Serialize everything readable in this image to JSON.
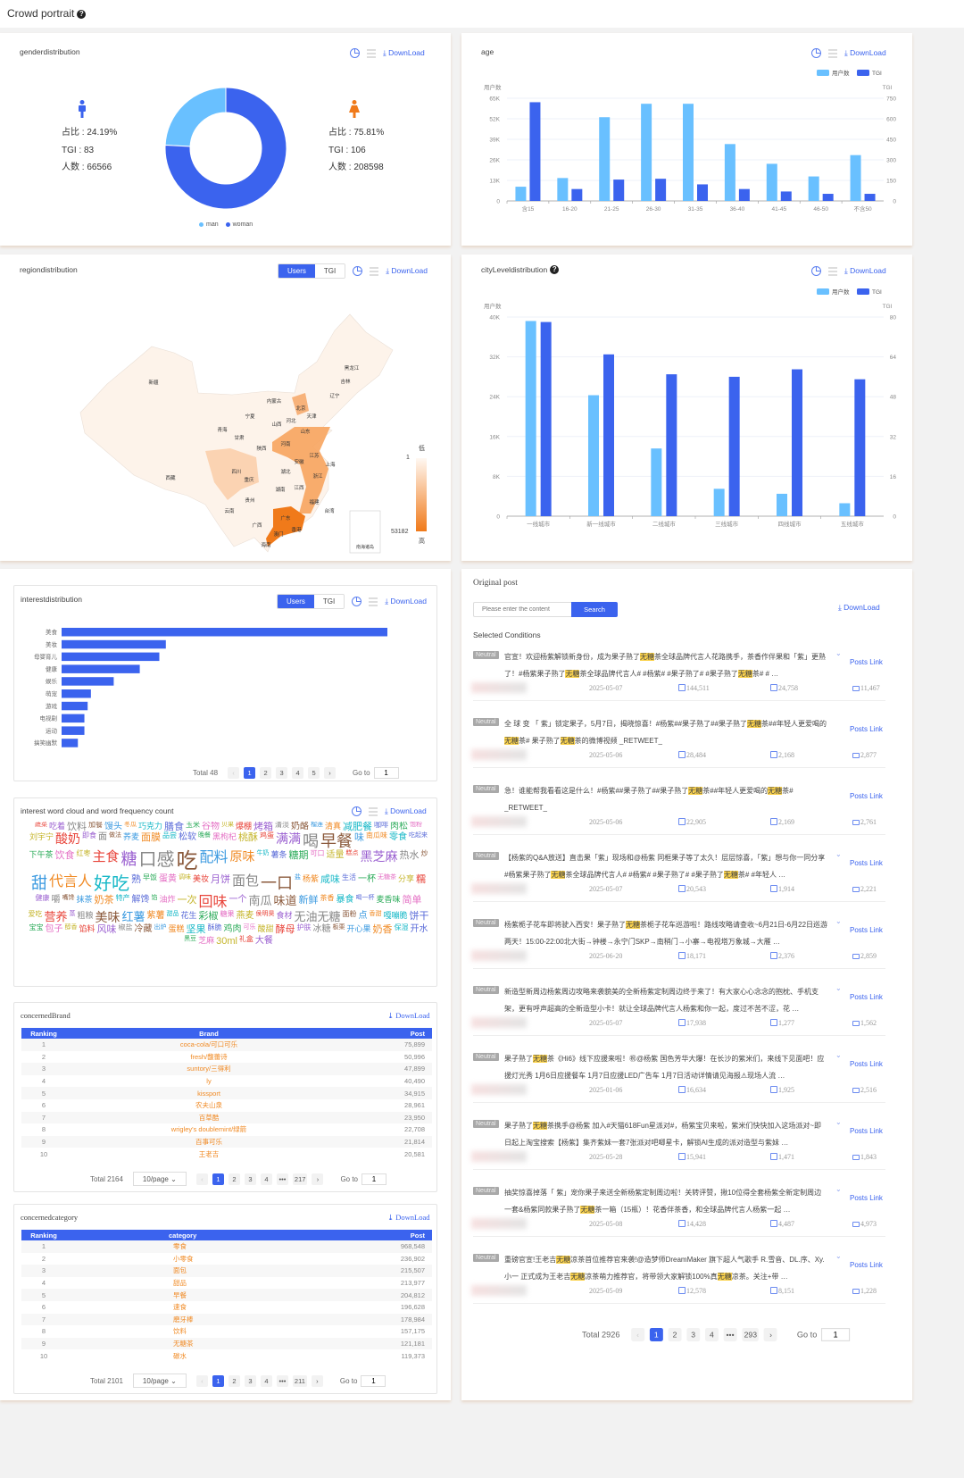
{
  "page": {
    "title": "Crowd portrait"
  },
  "common": {
    "download": "DownLoad",
    "users": "Users",
    "tgi": "TGI",
    "total_prefix": "Total",
    "goto": "Go to",
    "goto_value": "1",
    "page_size": "10/page"
  },
  "colors": {
    "primary": "#3b63ee",
    "light": "#69c0ff",
    "orange": "#f07a1a",
    "brand_text": "#f08a24",
    "highlight": "#fbd34d"
  },
  "gender": {
    "title": "genderdistribution",
    "man": {
      "icon": "male-icon",
      "ratio": "占比 : 24.19%",
      "tgi": "TGI : 83",
      "count": "人数 : 66566"
    },
    "woman": {
      "icon": "female-icon",
      "ratio": "占比 : 75.81%",
      "tgi": "TGI : 106",
      "count": "人数 : 208598"
    }
  },
  "age": {
    "title": "age"
  },
  "region": {
    "title": "regiondistribution",
    "legend_low": "低",
    "legend_high": "高",
    "min": "1",
    "max": "53182",
    "provinces": [
      {
        "name": "新疆",
        "level": 0.05
      },
      {
        "name": "西藏",
        "level": 0.0
      },
      {
        "name": "青海",
        "level": 0.0
      },
      {
        "name": "甘肃",
        "level": 0.02
      },
      {
        "name": "宁夏",
        "level": 0.02
      },
      {
        "name": "内蒙古",
        "level": 0.05
      },
      {
        "name": "北京",
        "level": 0.45
      },
      {
        "name": "天津",
        "level": 0.1
      },
      {
        "name": "河北",
        "level": 0.15
      },
      {
        "name": "山西",
        "level": 0.08
      },
      {
        "name": "山东",
        "level": 0.6
      },
      {
        "name": "河南",
        "level": 0.55
      },
      {
        "name": "陕西",
        "level": 0.15
      },
      {
        "name": "四川",
        "level": 0.3
      },
      {
        "name": "重庆",
        "level": 0.15
      },
      {
        "name": "湖北",
        "level": 0.15
      },
      {
        "name": "安徽",
        "level": 0.3
      },
      {
        "name": "江苏",
        "level": 0.6
      },
      {
        "name": "上海",
        "level": 0.5
      },
      {
        "name": "浙江",
        "level": 0.6
      },
      {
        "name": "江西",
        "level": 0.1
      },
      {
        "name": "湖南",
        "level": 0.15
      },
      {
        "name": "贵州",
        "level": 0.05
      },
      {
        "name": "云南",
        "level": 0.08
      },
      {
        "name": "广西",
        "level": 0.08
      },
      {
        "name": "广东",
        "level": 1.0
      },
      {
        "name": "福建",
        "level": 0.6
      },
      {
        "name": "台湾",
        "level": 0.0
      },
      {
        "name": "香港",
        "level": 0.05
      },
      {
        "name": "澳门",
        "level": 0.02
      },
      {
        "name": "海南",
        "level": 0.05
      },
      {
        "name": "黑龙江",
        "level": 0.05
      },
      {
        "name": "吉林",
        "level": 0.05
      },
      {
        "name": "辽宁",
        "level": 0.1
      }
    ],
    "inset_label": "南海诸岛"
  },
  "city": {
    "title": "cityLeveldistribution"
  },
  "interest": {
    "title": "interestdistribution",
    "total": "Total 48",
    "pages": [
      "1",
      "2",
      "3",
      "4",
      "5"
    ]
  },
  "wordcloud": {
    "title": "interest word cloud and word frequency count",
    "words": [
      "蔬菜",
      "吃着",
      "饮料",
      "加餐",
      "馒头",
      "冬瓜",
      "巧克力",
      "膳食",
      "玉米",
      "谷物",
      "贝果",
      "爆棚",
      "烤箱",
      "清淡",
      "奶酪",
      "榴莲",
      "清真",
      "减肥餐",
      "咖啡",
      "肉松",
      "饱粉",
      "刘宇宁",
      "酸奶",
      "即食",
      "面",
      "做法",
      "荞麦",
      "面膜",
      "品尝",
      "松软",
      "晚餐",
      "黑枸杞",
      "桃酥",
      "鸡蛋",
      "满满",
      "喝",
      "早餐",
      "味",
      "南瓜味",
      "零食",
      "吃起来",
      "下午茶",
      "饮食",
      "红枣",
      "主食",
      "糖",
      "口感",
      "吃",
      "配料",
      "原味",
      "牛奶",
      "薯条",
      "糖期",
      "可口",
      "适量",
      "糕点",
      "黑芝麻",
      "热水",
      "炒",
      "甜",
      "代言人",
      "好吃",
      "熟",
      "早饭",
      "蛋黄",
      "调味",
      "美妆",
      "月饼",
      "面包",
      "一口",
      "盐",
      "杨紫",
      "咸味",
      "生活",
      "一杯",
      "无糖茶",
      "分享",
      "糯",
      "健康",
      "嚼",
      "嘴馋",
      "抹茶",
      "奶茶",
      "特产",
      "解馋",
      "馅",
      "油炸",
      "一次",
      "回味",
      "一个",
      "南瓜",
      "味道",
      "新鲜",
      "茶香",
      "暴食",
      "喝一杯",
      "麦香味",
      "简单",
      "爱吃",
      "营养",
      "蒸",
      "粗粮",
      "美味",
      "红薯",
      "紫薯",
      "甜品",
      "花生",
      "彩椒",
      "糖果",
      "燕麦",
      "侯明昊",
      "食材",
      "无油无糖",
      "面粉",
      "点",
      "香甜",
      "嘎嘣脆",
      "饼干",
      "宝宝",
      "包子",
      "醇香",
      "馅料",
      "风味",
      "椒盐",
      "冷藏",
      "出炉",
      "蛋糕",
      "坚果",
      "酥脆",
      "鸡肉",
      "可乐",
      "酸甜",
      "酵母",
      "护肤",
      "冰糖",
      "板栗",
      "开心果",
      "奶香",
      "保湿",
      "开水",
      "黑豆",
      "芝麻",
      "30ml",
      "礼盒",
      "大餐"
    ]
  },
  "brand": {
    "title": "concernedBrand",
    "columns": [
      "Ranking",
      "Brand",
      "Post"
    ],
    "rows": [
      [
        "1",
        "coca-cola/可口可乐",
        "75,899"
      ],
      [
        "2",
        "fresh/馥蕾诗",
        "50,996"
      ],
      [
        "3",
        "suntory/三得利",
        "47,899"
      ],
      [
        "4",
        "ly",
        "40,490"
      ],
      [
        "5",
        "kissport",
        "34,915"
      ],
      [
        "6",
        "农夫山泉",
        "28,961"
      ],
      [
        "7",
        "百草酷",
        "23,950"
      ],
      [
        "8",
        "wrigley's doublemint/绿箭",
        "22,708"
      ],
      [
        "9",
        "百事可乐",
        "21,814"
      ],
      [
        "10",
        "王老吉",
        "20,581"
      ]
    ],
    "total": "Total 2164",
    "pages": [
      "1",
      "2",
      "3",
      "4",
      "•••",
      "217"
    ]
  },
  "category": {
    "title": "concernedcategory",
    "columns": [
      "Ranking",
      "category",
      "Post"
    ],
    "rows": [
      [
        "1",
        "零食",
        "968,548"
      ],
      [
        "2",
        "小零食",
        "236,902"
      ],
      [
        "3",
        "面包",
        "215,507"
      ],
      [
        "4",
        "甜品",
        "213,977"
      ],
      [
        "5",
        "早餐",
        "204,812"
      ],
      [
        "6",
        "速食",
        "196,628"
      ],
      [
        "7",
        "磨牙棒",
        "178,984"
      ],
      [
        "8",
        "饮料",
        "157,175"
      ],
      [
        "9",
        "无糖茶",
        "121,181"
      ],
      [
        "10",
        "碳水",
        "119,373"
      ]
    ],
    "total": "Total 2101",
    "pages": [
      "1",
      "2",
      "3",
      "4",
      "•••",
      "211"
    ]
  },
  "posts": {
    "title": "Original post",
    "search_placeholder": "Please enter the content",
    "search_label": "Search",
    "selected_conditions": "Selected Conditions",
    "keyword": "无糖",
    "link_label": "Posts Link",
    "tag": "Neutral",
    "total": "Total 2926",
    "pages": [
      "1",
      "2",
      "3",
      "4",
      "•••",
      "293"
    ],
    "items": [
      {
        "text": "官宣！欢迎杨紫解锁新身份，成为果子熟了无糖茶全球品牌代言人花路携手，茶香作伴果和「紫」更熟了！#杨紫果子熟了无糖茶全球品牌代言人# #杨紫# #果子熟了# #果子熟了无糖茶# # …",
        "date": "2025-05-07",
        "likes": "144,511",
        "shares": "24,758",
        "comments": "11,467",
        "expandable": true
      },
      {
        "text": "全 球 变 「 紫」锁定果子，5月7日，揭晓惊喜！#杨紫##果子熟了##果子熟了无糖茶##年轻人更爱喝的无糖茶# 果子熟了无糖茶的微博视频 _RETWEET_",
        "date": "2025-05-06",
        "likes": "28,484",
        "shares": "2,168",
        "comments": "2,877",
        "expandable": false
      },
      {
        "text": "急！谁能帮我看看这是什么！#杨紫##果子熟了##果子熟了无糖茶##年轻人更爱喝的无糖茶# _RETWEET_",
        "date": "2025-05-06",
        "likes": "22,905",
        "shares": "2,169",
        "comments": "2,761",
        "expandable": false
      },
      {
        "text": "【杨紫的Q&A放送】直击果「紫」现场和@杨紫 同框果子等了太久！层层惊喜，「紫」想与你一同分享#杨紫果子熟了无糖茶全球品牌代言人# #杨紫# #果子熟了# #果子熟了无糖茶# #年轻人 …",
        "date": "2025-05-07",
        "likes": "20,543",
        "shares": "1,914",
        "comments": "2,221",
        "expandable": true
      },
      {
        "text": "杨紫栀子花车即将驶入西安！果子熟了无糖茶栀子花车巡游啦！路线攻略请查收~6月21日-6月22日巡游两天！15:00-22:00北大街→钟楼→永宁门SKP→南稍门→小寨→电视塔万象城→大雁 …",
        "date": "2025-06-20",
        "likes": "18,171",
        "shares": "2,376",
        "comments": "2,859",
        "expandable": true
      },
      {
        "text": "新造型新周边杨紫周边攻略来袭貌美的全新杨紫定制周边终于来了！有大家心心念念的抱枕、手机支架，更有呼声超高的全新造型小卡！就让全球品牌代言人杨紫和你一起，度过不苦不涩，花 …",
        "date": "2025-05-07",
        "likes": "17,938",
        "shares": "1,277",
        "comments": "1,562",
        "expandable": true
      },
      {
        "text": "果子熟了无糖茶《Hi6》线下应援来啦！㊗@杨紫 国色芳华大爆！在长沙的紫米们，来线下见面吧！应援灯光秀 1月6日应援餐车 1月7日应援LED广告车 1月7日活动详情请见海报⚠现场人流 …",
        "date": "2025-01-06",
        "likes": "16,634",
        "shares": "1,925",
        "comments": "2,516",
        "expandable": true
      },
      {
        "text": "果子熟了无糖茶携手@杨紫 加入#天猫618Fun星派对#，杨紫宝贝来啦，紫米们快快加入这场派对~即日起上淘宝搜索【杨紫】集齐紫妹一套7张派对吧唧星卡，解锁AI生成的派对造型与紫妹 …",
        "date": "2025-05-28",
        "likes": "15,941",
        "shares": "1,471",
        "comments": "1,843",
        "expandable": true
      },
      {
        "text": "抽奖惊喜掉落「 紫」宠你果子来送全新杨紫定制周边啦！关转评赞，揪10位得全套杨紫全新定制周边一套&杨紫同款果子熟了无糖茶一箱（15瓶）！花香伴茶香，和全球品牌代言人杨紫一起 …",
        "date": "2025-05-08",
        "likes": "14,428",
        "shares": "4,487",
        "comments": "4,973",
        "expandable": true
      },
      {
        "text": "重磅官宣!王老吉无糖凉茶首位推荐官来袭!@造梦师DreamMaker 旗下超人气歌手 R.雪音、DL.序、Xy.小一 正式成为王老吉无糖凉茶萌力推荐官，将带领大家解锁100%真无糖凉茶。关注+带 …",
        "date": "2025-05-09",
        "likes": "12,578",
        "shares": "8,151",
        "comments": "1,228",
        "expandable": true
      }
    ]
  },
  "chart_data": [
    {
      "id": "gender",
      "type": "pie",
      "donut": true,
      "categories": [
        "man",
        "woman"
      ],
      "values": [
        24.19,
        75.81
      ],
      "colors": [
        "#69c0ff",
        "#3b63ee"
      ],
      "legend": "bottom"
    },
    {
      "id": "age",
      "type": "bar",
      "categories": [
        "含15",
        "16-20",
        "21-25",
        "26-30",
        "31-35",
        "36-40",
        "41-45",
        "46-50",
        "不含50"
      ],
      "series": [
        {
          "name": "用户数",
          "axis": "left",
          "color": "#69c0ff",
          "values": [
            9000,
            14500,
            53000,
            61500,
            61500,
            36000,
            23500,
            15500,
            29000
          ]
        },
        {
          "name": "TGI",
          "axis": "right",
          "color": "#3b63ee",
          "values": [
            721,
            87,
            156,
            162,
            121,
            87,
            69,
            52,
            52
          ]
        }
      ],
      "ylabel": "用户数",
      "ylabel_right": "TGI",
      "ylim": [
        0,
        65000
      ],
      "yticks": [
        "0",
        "13K",
        "26K",
        "39K",
        "52K",
        "65K"
      ],
      "ylim_right": [
        0,
        750
      ],
      "yticks_right": [
        "0",
        "150",
        "300",
        "450",
        "600",
        "750"
      ],
      "grid": true,
      "legend": "top-right"
    },
    {
      "id": "city",
      "type": "bar",
      "categories": [
        "一线城市",
        "新一线城市",
        "二线城市",
        "三线城市",
        "四线城市",
        "五线城市"
      ],
      "series": [
        {
          "name": "用户数",
          "axis": "left",
          "color": "#69c0ff",
          "values": [
            39200,
            24300,
            13600,
            5500,
            4500,
            2600
          ]
        },
        {
          "name": "TGI",
          "axis": "right",
          "color": "#3b63ee",
          "values": [
            78,
            65,
            57,
            56,
            59,
            55
          ]
        }
      ],
      "ylabel": "用户数",
      "ylabel_right": "TGI",
      "ylim": [
        0,
        40000
      ],
      "yticks": [
        "0",
        "8K",
        "16K",
        "24K",
        "32K",
        "40K"
      ],
      "ylim_right": [
        0,
        80
      ],
      "yticks_right": [
        "0",
        "16",
        "32",
        "48",
        "64",
        "80"
      ],
      "grid": true,
      "legend": "top-right"
    },
    {
      "id": "interest",
      "type": "bar",
      "orientation": "horizontal",
      "categories": [
        "美食",
        "美妆",
        "母婴育儿",
        "健康",
        "娱乐",
        "萌宠",
        "游戏",
        "电视剧",
        "运动",
        "搞笑幽默"
      ],
      "values": [
        100,
        32,
        30,
        24,
        16,
        9,
        8,
        7,
        7,
        5
      ],
      "value_unit": "relative %",
      "color": "#3b63ee"
    }
  ]
}
